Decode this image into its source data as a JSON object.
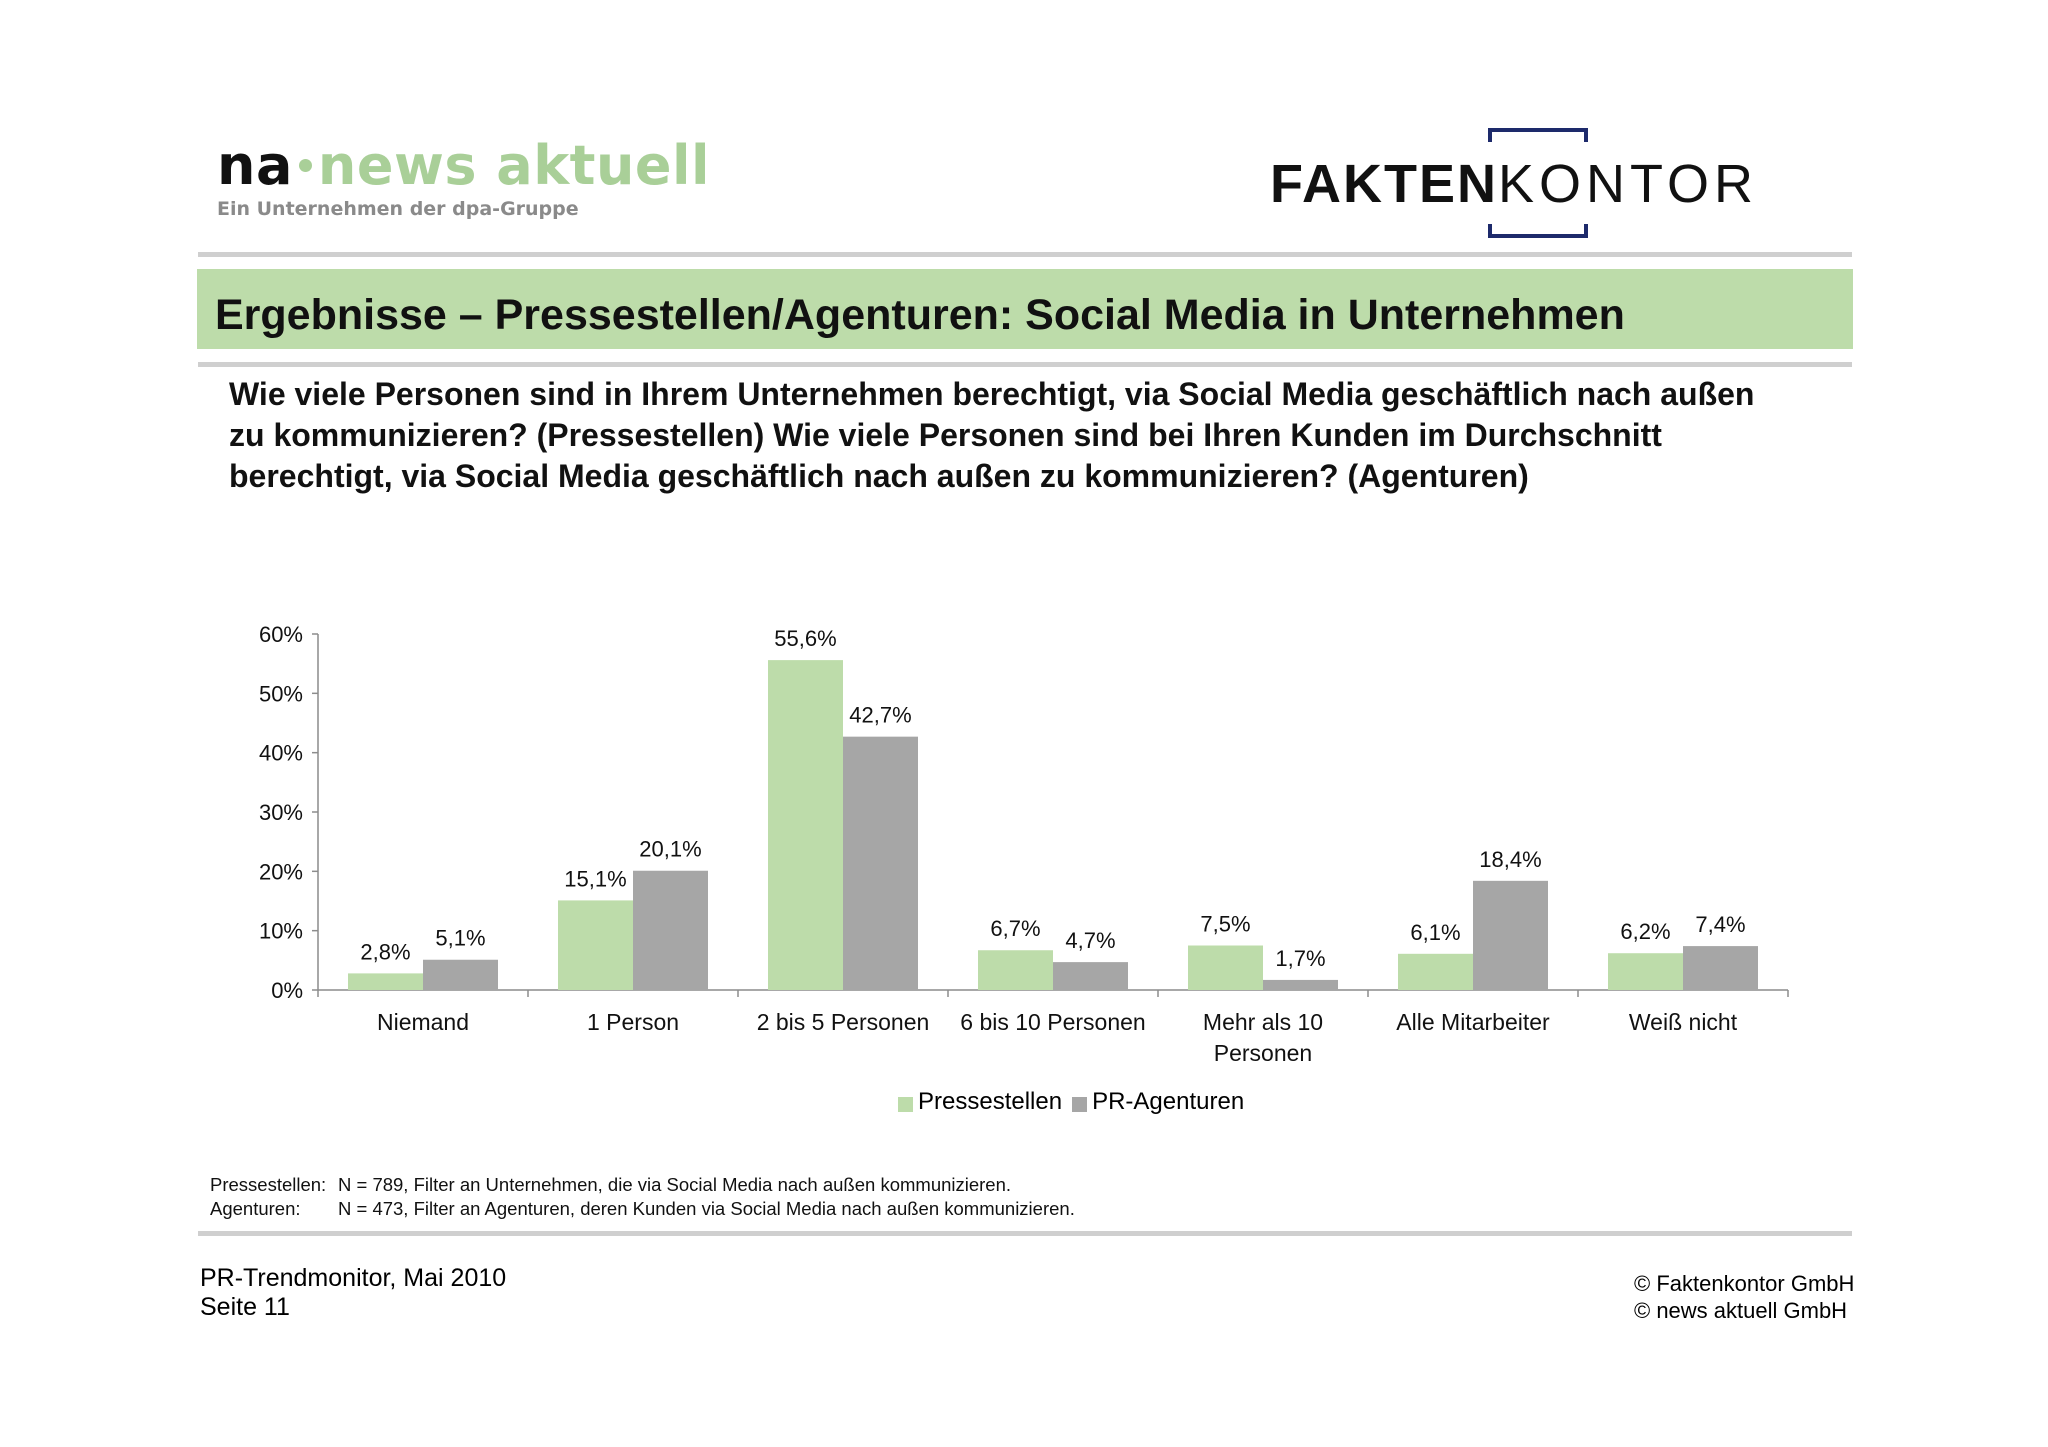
{
  "logos": {
    "na": {
      "prefix": "na",
      "word": "news aktuell",
      "subtitle": "Ein Unternehmen der dpa-Gruppe",
      "accent_color": "#a9cf98"
    },
    "faktenkontor": {
      "bold": "FAKTEN",
      "light": "KONTOR",
      "bracket_color": "#1d2a6b"
    }
  },
  "title": "Ergebnisse – Pressestellen/Agenturen: Social Media in Unternehmen",
  "question": "Wie viele Personen sind in Ihrem Unternehmen berechtigt, via Social Media geschäftlich nach außen zu kommunizieren? (Pressestellen) Wie viele Personen sind bei Ihren Kunden im Durchschnitt  berechtigt, via Social Media geschäftlich nach außen zu kommunizieren? (Agenturen)",
  "chart_data": {
    "type": "bar",
    "categories": [
      [
        "Niemand"
      ],
      [
        "1 Person"
      ],
      [
        "2 bis 5 Personen"
      ],
      [
        "6 bis 10 Personen"
      ],
      [
        "Mehr als 10",
        "Personen"
      ],
      [
        "Alle Mitarbeiter"
      ],
      [
        "Weiß nicht"
      ]
    ],
    "series": [
      {
        "name": "Pressestellen",
        "color": "#bddcaa",
        "values": [
          2.8,
          15.1,
          55.6,
          6.7,
          7.5,
          6.1,
          6.2
        ],
        "labels": [
          "2,8%",
          "15,1%",
          "55,6%",
          "6,7%",
          "7,5%",
          "6,1%",
          "6,2%"
        ]
      },
      {
        "name": "PR-Agenturen",
        "color": "#a6a6a6",
        "values": [
          5.1,
          20.1,
          42.7,
          4.7,
          1.7,
          18.4,
          7.4
        ],
        "labels": [
          "5,1%",
          "20,1%",
          "42,7%",
          "4,7%",
          "1,7%",
          "18,4%",
          "7,4%"
        ]
      }
    ],
    "ylim": [
      0,
      60
    ],
    "yticks": [
      "0%",
      "10%",
      "20%",
      "30%",
      "40%",
      "50%",
      "60%"
    ],
    "legend_position": "bottom",
    "grid": false
  },
  "notes": [
    {
      "label": "Pressestellen:",
      "text": "N = 789, Filter an Unternehmen, die via Social Media nach außen kommunizieren."
    },
    {
      "label": "Agenturen:",
      "text": "N = 473, Filter an Agenturen, deren Kunden via Social Media nach außen kommunizieren."
    }
  ],
  "footer": {
    "left": [
      "PR-Trendmonitor, Mai 2010",
      "Seite 11"
    ],
    "right": [
      "© Faktenkontor GmbH",
      "© news aktuell GmbH"
    ]
  }
}
